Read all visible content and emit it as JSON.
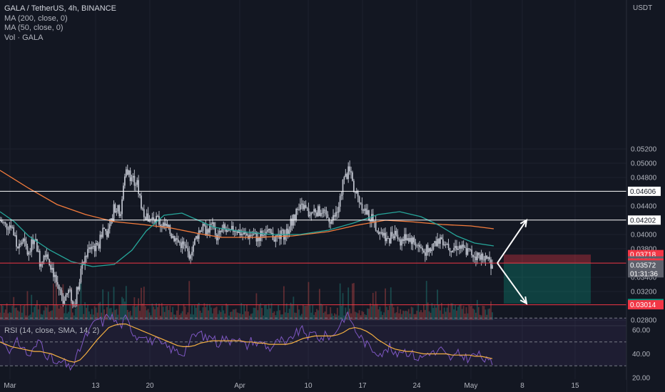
{
  "legend": {
    "title": "GALA / TetherUS, 4h, BINANCE",
    "ma200": "MA (200, close, 0)",
    "ma50": "MA (50, close, 0)",
    "vol": "Vol · GALA"
  },
  "currency": "USDT",
  "rsi_label": "RSI (14, close, SMA, 14, 2)",
  "chart_data": [
    {
      "type": "candlestick",
      "title": "GALA / TetherUS, 4h, BINANCE",
      "ylabel": "USDT",
      "ylim": [
        0.0278,
        0.0528
      ],
      "price_ticks": [
        0.052,
        0.05,
        0.048,
        0.044,
        0.04,
        0.038,
        0.034,
        0.032,
        0.028
      ],
      "price_tick_labels": [
        "0.05200",
        "0.05000",
        "0.04800",
        "0.04400",
        "0.04000",
        "0.03800",
        "0.03400",
        "0.03200",
        "0.02800"
      ],
      "x_tick_labels": [
        "Mar",
        "13",
        "20",
        "Apr",
        "10",
        "17",
        "24",
        "May",
        "8",
        "15"
      ],
      "close_path": [
        0.042,
        0.0412,
        0.0415,
        0.038,
        0.0392,
        0.037,
        0.04,
        0.036,
        0.0378,
        0.0355,
        0.033,
        0.031,
        0.032,
        0.0302,
        0.0345,
        0.037,
        0.0385,
        0.038,
        0.041,
        0.04,
        0.044,
        0.043,
        0.0492,
        0.048,
        0.047,
        0.043,
        0.042,
        0.0425,
        0.0415,
        0.041,
        0.04,
        0.039,
        0.0385,
        0.0372,
        0.039,
        0.041,
        0.0405,
        0.0412,
        0.0395,
        0.0408,
        0.04,
        0.041,
        0.0402,
        0.0398,
        0.04,
        0.0395,
        0.0405,
        0.04,
        0.0395,
        0.0398,
        0.0402,
        0.042,
        0.0432,
        0.044,
        0.0428,
        0.0435,
        0.043,
        0.0425,
        0.042,
        0.0432,
        0.0475,
        0.049,
        0.046,
        0.0445,
        0.043,
        0.042,
        0.041,
        0.04,
        0.0395,
        0.0405,
        0.039,
        0.0398,
        0.0392,
        0.0385,
        0.0375,
        0.038,
        0.039,
        0.0395,
        0.0388,
        0.038,
        0.0385,
        0.0378,
        0.0375,
        0.0371,
        0.0368,
        0.0365,
        0.0358
      ],
      "ma200_path": [
        [
          0,
          0.049
        ],
        [
          40,
          0.0465
        ],
        [
          80,
          0.0442
        ],
        [
          120,
          0.0428
        ],
        [
          160,
          0.0418
        ],
        [
          200,
          0.0414
        ],
        [
          240,
          0.0409
        ],
        [
          280,
          0.0401
        ],
        [
          310,
          0.0396
        ],
        [
          360,
          0.0396
        ],
        [
          410,
          0.0398
        ],
        [
          460,
          0.0404
        ],
        [
          500,
          0.0413
        ],
        [
          540,
          0.042
        ],
        [
          575,
          0.0418
        ],
        [
          620,
          0.0414
        ],
        [
          660,
          0.0412
        ],
        [
          692,
          0.0408
        ]
      ],
      "ma50_path": [
        [
          0,
          0.0432
        ],
        [
          20,
          0.0418
        ],
        [
          40,
          0.0398
        ],
        [
          70,
          0.0378
        ],
        [
          100,
          0.0362
        ],
        [
          130,
          0.0355
        ],
        [
          160,
          0.0358
        ],
        [
          185,
          0.0378
        ],
        [
          205,
          0.0405
        ],
        [
          230,
          0.0427
        ],
        [
          255,
          0.043
        ],
        [
          280,
          0.0419
        ],
        [
          300,
          0.041
        ],
        [
          340,
          0.0404
        ],
        [
          380,
          0.04
        ],
        [
          420,
          0.04
        ],
        [
          460,
          0.0406
        ],
        [
          495,
          0.0416
        ],
        [
          530,
          0.0428
        ],
        [
          560,
          0.0432
        ],
        [
          590,
          0.0425
        ],
        [
          615,
          0.0413
        ],
        [
          640,
          0.0398
        ],
        [
          665,
          0.0388
        ],
        [
          692,
          0.0384
        ]
      ],
      "horizontal_lines": [
        {
          "price": 0.04606,
          "label": "0.04606",
          "color": "#ffffff"
        },
        {
          "price": 0.04202,
          "label": "0.04202",
          "color": "#ffffff"
        },
        {
          "price": 0.03599,
          "label": "0.03599",
          "color": "#f23645"
        },
        {
          "price": 0.03014,
          "label": "0.03014",
          "color": "#f23645"
        }
      ],
      "price_labels": [
        {
          "price": 0.03718,
          "text": "0.03718",
          "bg": "#f23645"
        },
        {
          "price": 0.03629,
          "text": "0.03599",
          "bg": "#5d606b"
        },
        {
          "price": 0.03599,
          "text": "0.03599",
          "bg": "#f23645"
        },
        {
          "price": 0.03572,
          "text": "0.03572",
          "text2": "01:31:36",
          "bg": "#5d606b"
        },
        {
          "price": 0.03031,
          "text": "0.03031",
          "bg": "#089981"
        },
        {
          "price": 0.03014,
          "text": "0.03014",
          "bg": "#f23645"
        }
      ],
      "position": {
        "entry": 0.03599,
        "stop": 0.03718,
        "target": 0.03031
      },
      "projection_arrows": [
        [
          0.03599,
          0.04202
        ],
        [
          0.03599,
          0.03031
        ]
      ],
      "colors": {
        "up": "#b8bcc7",
        "ma200": "#f57c3c",
        "ma50": "#26a69a",
        "rsi": "#7e57c2",
        "rsi_sma": "#f5b041"
      }
    },
    {
      "type": "line",
      "title": "RSI (14, close, SMA, 14, 2)",
      "ylim": [
        20,
        80
      ],
      "y_ticks": [
        60,
        40,
        20
      ],
      "y_tick_labels": [
        "60.00",
        "40.00",
        "20.00"
      ],
      "bands": [
        70,
        50,
        30
      ],
      "rsi_path": [
        55,
        48,
        42,
        50,
        46,
        38,
        44,
        52,
        40,
        36,
        30,
        34,
        28,
        32,
        45,
        55,
        62,
        70,
        66,
        74,
        68,
        63,
        70,
        60,
        54,
        58,
        50,
        52,
        48,
        46,
        44,
        42,
        40,
        50,
        55,
        58,
        52,
        56,
        48,
        54,
        50,
        56,
        50,
        46,
        52,
        48,
        50,
        44,
        48,
        52,
        46,
        55,
        58,
        60,
        54,
        58,
        52,
        56,
        54,
        62,
        70,
        72,
        60,
        54,
        48,
        44,
        42,
        40,
        46,
        38,
        44,
        42,
        40,
        36,
        38,
        42,
        40,
        44,
        38,
        36,
        40,
        38,
        36,
        40,
        38,
        34,
        32
      ],
      "sma_path": [
        50,
        48,
        46,
        45,
        44,
        43,
        42,
        42,
        41,
        40,
        38,
        36,
        34,
        33,
        35,
        40,
        46,
        52,
        57,
        62,
        64,
        65,
        65,
        63,
        61,
        59,
        57,
        55,
        53,
        51,
        49,
        47,
        46,
        46,
        47,
        49,
        50,
        51,
        51,
        51,
        51,
        51,
        51,
        50,
        50,
        49,
        49,
        48,
        48,
        48,
        48,
        49,
        51,
        53,
        54,
        55,
        55,
        55,
        55,
        56,
        58,
        61,
        62,
        61,
        59,
        56,
        52,
        49,
        46,
        44,
        43,
        42,
        42,
        41,
        40,
        40,
        40,
        40,
        40,
        39,
        39,
        39,
        39,
        38,
        38,
        37,
        36
      ]
    }
  ]
}
